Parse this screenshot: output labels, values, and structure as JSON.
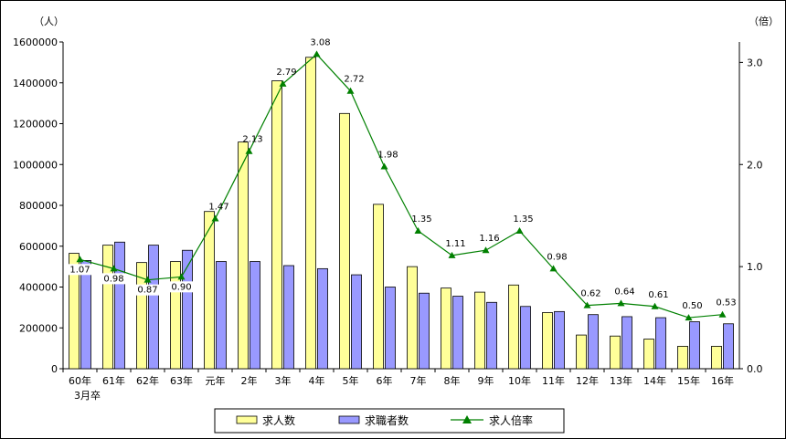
{
  "chart_data": {
    "type": "bar",
    "categories": [
      "60年",
      "61年",
      "62年",
      "63年",
      "元年",
      "2年",
      "3年",
      "4年",
      "5年",
      "6年",
      "7年",
      "8年",
      "9年",
      "10年",
      "11年",
      "12年",
      "13年",
      "14年",
      "15年",
      "16年"
    ],
    "first_category_sublabel": "3月卒",
    "y_left": {
      "unit": "（人）",
      "ylim": [
        0,
        1600000
      ],
      "ticks": [
        "0",
        "200000",
        "400000",
        "600000",
        "800000",
        "1000000",
        "1200000",
        "1400000",
        "1600000"
      ]
    },
    "y_right": {
      "unit": "（倍）",
      "ylim": [
        0,
        3.2
      ],
      "ticks": [
        "0.0",
        "1.0",
        "2.0",
        "3.0"
      ]
    },
    "series": [
      {
        "name": "求人数",
        "kind": "bar",
        "color": "#ffff99",
        "values": [
          565000,
          605000,
          520000,
          525000,
          770000,
          1110000,
          1410000,
          1525000,
          1250000,
          805000,
          500000,
          395000,
          375000,
          410000,
          275000,
          165000,
          160000,
          145000,
          110000,
          110000
        ]
      },
      {
        "name": "求職者数",
        "kind": "bar",
        "color": "#9999ff",
        "values": [
          530000,
          620000,
          605000,
          580000,
          525000,
          525000,
          505000,
          490000,
          460000,
          400000,
          370000,
          355000,
          325000,
          305000,
          280000,
          265000,
          255000,
          250000,
          230000,
          220000
        ]
      },
      {
        "name": "求人倍率",
        "kind": "line",
        "axis": "right",
        "color": "#008000",
        "values": [
          1.07,
          0.98,
          0.87,
          0.9,
          1.47,
          2.13,
          2.79,
          3.08,
          2.72,
          1.98,
          1.35,
          1.11,
          1.16,
          1.35,
          0.98,
          0.62,
          0.64,
          0.61,
          0.5,
          0.53
        ],
        "labels": [
          "1.07",
          "0.98",
          "0.87",
          "0.90",
          "1.47",
          "2.13",
          "2.79",
          "3.08",
          "2.72",
          "1.98",
          "1.35",
          "1.11",
          "1.16",
          "1.35",
          "0.98",
          "0.62",
          "0.64",
          "0.61",
          "0.50",
          "0.53"
        ]
      }
    ],
    "grid": false,
    "legend": "bottom"
  }
}
